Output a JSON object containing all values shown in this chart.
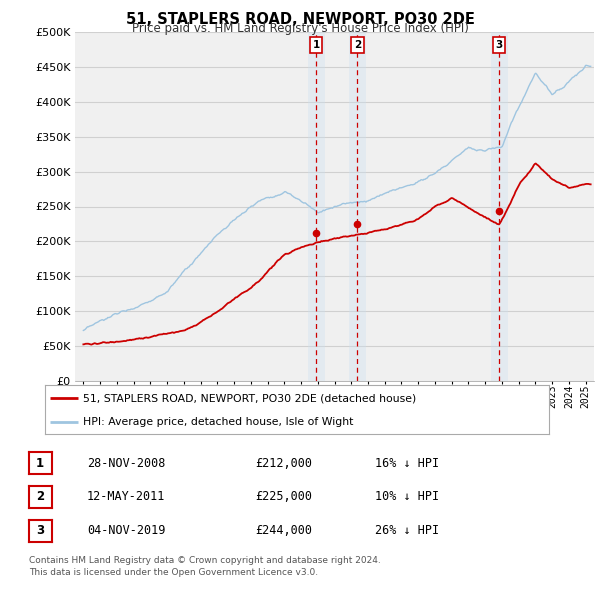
{
  "title": "51, STAPLERS ROAD, NEWPORT, PO30 2DE",
  "subtitle": "Price paid vs. HM Land Registry's House Price Index (HPI)",
  "legend_entries": [
    "51, STAPLERS ROAD, NEWPORT, PO30 2DE (detached house)",
    "HPI: Average price, detached house, Isle of Wight"
  ],
  "sales": [
    {
      "label": "1",
      "date": "28-NOV-2008",
      "price": 212000,
      "price_str": "£212,000",
      "pct": "16%",
      "dir": "↓",
      "x_year": 2008.91
    },
    {
      "label": "2",
      "date": "12-MAY-2011",
      "price": 225000,
      "price_str": "£225,000",
      "pct": "10%",
      "dir": "↓",
      "x_year": 2011.37
    },
    {
      "label": "3",
      "date": "04-NOV-2019",
      "price": 244000,
      "price_str": "£244,000",
      "pct": "26%",
      "dir": "↓",
      "x_year": 2019.84
    }
  ],
  "footer": [
    "Contains HM Land Registry data © Crown copyright and database right 2024.",
    "This data is licensed under the Open Government Licence v3.0."
  ],
  "hpi_color": "#9fc5e0",
  "price_color": "#cc0000",
  "sale_marker_color": "#cc0000",
  "span_color": "#cce0f0",
  "background_color": "#ffffff",
  "plot_bg_color": "#f0f0f0",
  "grid_color": "#d0d0d0",
  "ylim": [
    0,
    500000
  ],
  "xlim_start": 1994.5,
  "xlim_end": 2025.5,
  "hpi_anchors_x": [
    1995,
    1996,
    1997,
    1998,
    1999,
    2000,
    2001,
    2002,
    2003,
    2004,
    2005,
    2006,
    2007,
    2008,
    2009,
    2010,
    2011,
    2012,
    2013,
    2014,
    2015,
    2016,
    2017,
    2018,
    2019,
    2020,
    2021,
    2022,
    2023,
    2024,
    2025
  ],
  "hpi_anchors_y": [
    72000,
    80000,
    90000,
    100000,
    115000,
    130000,
    155000,
    175000,
    200000,
    220000,
    240000,
    255000,
    265000,
    250000,
    235000,
    245000,
    255000,
    258000,
    265000,
    275000,
    285000,
    300000,
    320000,
    340000,
    340000,
    345000,
    400000,
    450000,
    420000,
    440000,
    460000
  ],
  "price_anchors_x": [
    1995,
    1997,
    1999,
    2001,
    2003,
    2005,
    2007,
    2008.91,
    2010,
    2011.37,
    2013,
    2015,
    2017,
    2019.84,
    2021,
    2022,
    2023,
    2024,
    2025
  ],
  "price_anchors_y": [
    52000,
    58000,
    67000,
    80000,
    110000,
    145000,
    195000,
    212000,
    220000,
    225000,
    235000,
    248000,
    280000,
    244000,
    300000,
    330000,
    305000,
    290000,
    295000
  ]
}
